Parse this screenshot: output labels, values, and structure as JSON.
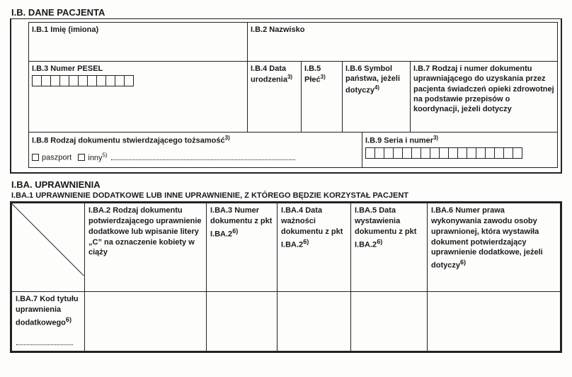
{
  "sectionB": {
    "title": "I.B. DANE PACJENTA",
    "b1": {
      "label": "I.B.1 Imię (imiona)"
    },
    "b2": {
      "label": "I.B.2 Nazwisko"
    },
    "b3": {
      "label": "I.B.3 Numer PESEL",
      "cellCount": 11
    },
    "b4": {
      "label_html": "I.B.4 Data urodzenia",
      "sup": "3)"
    },
    "b5": {
      "label_html": "I.B.5 Płeć",
      "sup": "3)"
    },
    "b6": {
      "label_html": "I.B.6 Symbol państwa, jeżeli dotyczy",
      "sup": "4)"
    },
    "b7": {
      "label": "I.B.7 Rodzaj i numer dokumentu uprawniającego do uzyskania przez pacjenta świadczeń opieki zdrowotnej na podstawie przepisów o koordynacji, jeżeli dotyczy"
    },
    "b8": {
      "label_html": "I.B.8 Rodzaj dokumentu stwierdzającego tożsamość",
      "sup": "3)",
      "paszport": "paszport",
      "inny": "inny",
      "inny_sup": "5)"
    },
    "b9": {
      "label_html": "I.B.9 Seria i numer",
      "sup": "3)",
      "cellCount": 17
    }
  },
  "sectionBA": {
    "title": "I.BA. UPRAWNIENIA",
    "subtitle": "I.BA.1 UPRAWNIENIE DODATKOWE LUB INNE UPRAWNIENIE, Z KTÓREGO BĘDZIE KORZYSTAŁ PACJENT",
    "ba2": "I.BA.2 Rodzaj dokumentu potwierdzającego uprawnienie dodatkowe lub wpisanie litery „C” na oznaczenie kobiety w ciąży",
    "ba3": {
      "t": "I.BA.3 Numer dokumentu z pkt I.BA.2",
      "sup": "6)"
    },
    "ba4": {
      "t": "I.BA.4 Data ważności dokumentu z pkt I.BA.2",
      "sup": "6)"
    },
    "ba5": {
      "t": "I.BA.5 Data wystawienia dokumentu z pkt I.BA.2",
      "sup": "6)"
    },
    "ba6": {
      "t": "I.BA.6 Numer prawa wykonywania zawodu osoby uprawnionej, która wystawiła dokument potwierdzający uprawnienie dodatkowe, jeżeli dotyczy",
      "sup": "6)"
    },
    "ba7": {
      "t": "I.BA.7 Kod tytułu uprawnienia dodatkowego",
      "sup": "6)"
    }
  },
  "layout": {
    "colors": {
      "line": "#222222",
      "bg": "#fdfdfc",
      "text": "#1a1a1a"
    },
    "sectionB_heights": {
      "row1": 56,
      "row2": 100,
      "row3": 50
    },
    "sectionB_widths": {
      "b1": 310,
      "b2": 466,
      "b3": 310,
      "b4": 76,
      "b5": 58,
      "b6": 96,
      "b7": 236,
      "b8": 472,
      "b9": 304
    },
    "ba_widths": {
      "c1": 104,
      "c2": 172,
      "c3": 100,
      "c4": 104,
      "c5": 108,
      "c6": 188
    },
    "ba_heights": {
      "header": 126,
      "row2": 84
    }
  }
}
